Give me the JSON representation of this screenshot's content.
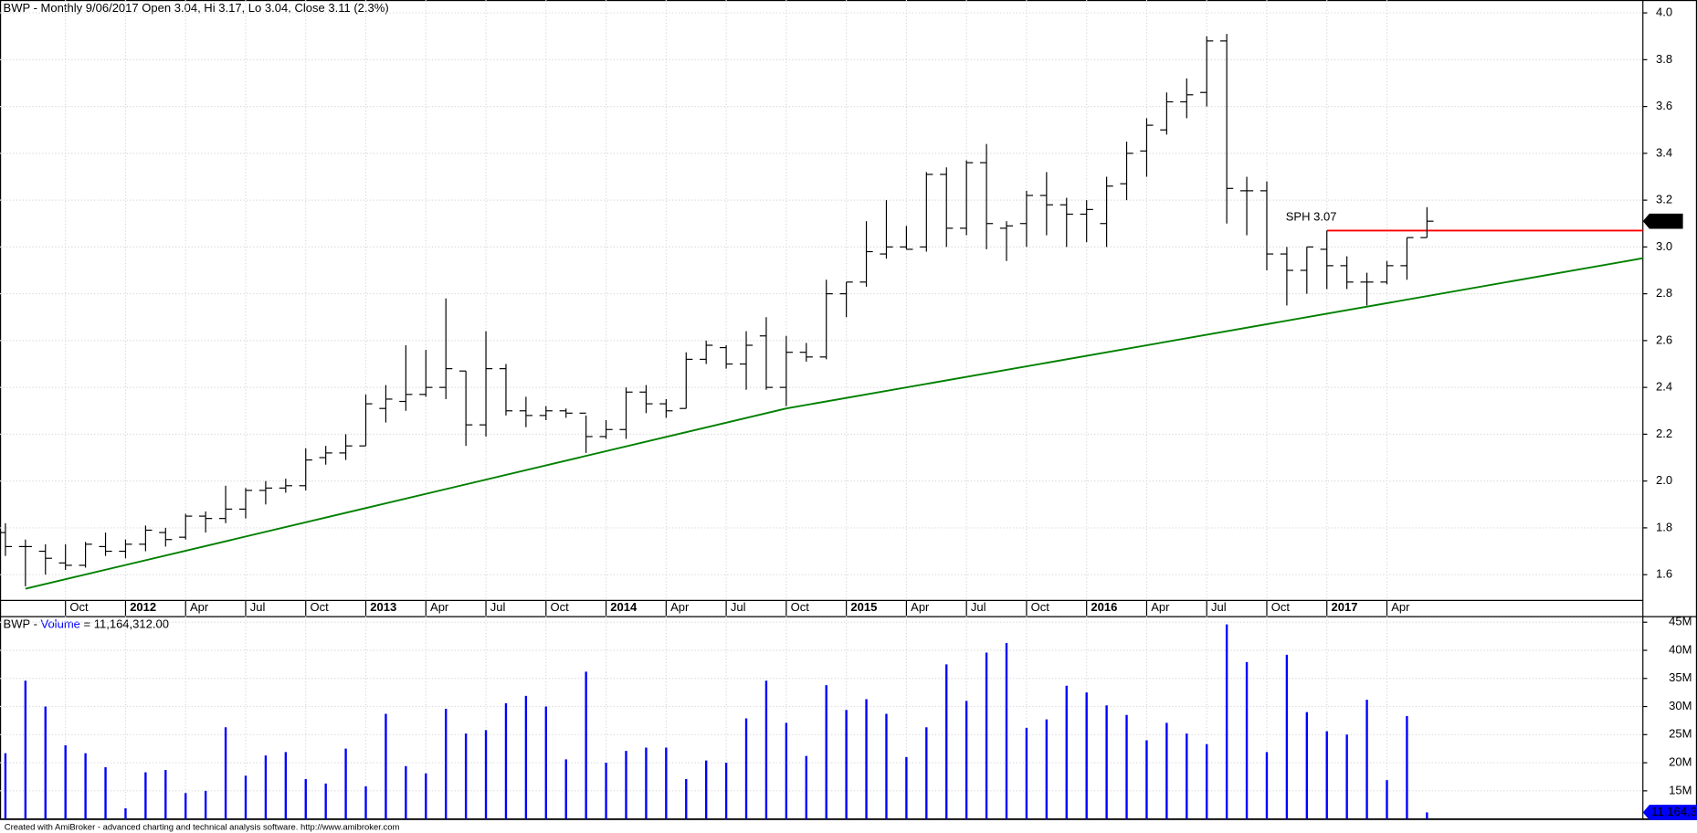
{
  "chart_data": [
    {
      "type": "ohlc",
      "title": "BWP - Monthly 9/06/2017 Open 3.04, Hi 3.17, Lo 3.04, Close 3.11 (2.3%)",
      "categories": [
        null,
        null,
        null,
        "Oct",
        null,
        null,
        "2012",
        null,
        null,
        "Apr",
        null,
        null,
        "Jul",
        null,
        null,
        "Oct",
        null,
        null,
        "2013",
        null,
        null,
        "Apr",
        null,
        null,
        "Jul",
        null,
        null,
        "Oct",
        null,
        null,
        "2014",
        null,
        null,
        "Apr",
        null,
        null,
        "Jul",
        null,
        null,
        "Oct",
        null,
        null,
        "2015",
        null,
        null,
        "Apr",
        null,
        null,
        "Jul",
        null,
        null,
        "Oct",
        null,
        null,
        "2016",
        null,
        null,
        "Apr",
        null,
        null,
        "Jul",
        null,
        null,
        "Oct",
        null,
        null,
        "2017",
        null,
        null,
        "Apr",
        null,
        null
      ],
      "open": [
        1.78,
        1.72,
        1.7,
        1.65,
        1.64,
        1.72,
        1.7,
        1.73,
        1.78,
        1.76,
        1.85,
        1.84,
        1.88,
        1.96,
        1.97,
        1.98,
        2.1,
        2.12,
        2.15,
        2.31,
        2.34,
        2.37,
        2.4,
        2.47,
        2.24,
        2.48,
        2.3,
        2.28,
        2.3,
        2.29,
        2.19,
        2.22,
        2.38,
        2.33,
        2.31,
        2.52,
        2.57,
        2.5,
        2.62,
        2.4,
        2.55,
        2.53,
        2.8,
        2.85,
        2.97,
        3.0,
        3.0,
        3.31,
        3.08,
        3.36,
        3.08,
        3.1,
        3.22,
        3.18,
        3.14,
        3.1,
        3.27,
        3.41,
        3.5,
        3.62,
        3.66,
        3.88,
        3.24,
        3.24,
        2.97,
        2.9,
        2.99,
        2.92,
        2.85,
        2.85,
        2.92,
        3.04
      ],
      "high": [
        1.82,
        1.75,
        1.73,
        1.73,
        1.74,
        1.78,
        1.75,
        1.81,
        1.8,
        1.86,
        1.87,
        1.98,
        1.97,
        2.0,
        2.01,
        2.14,
        2.15,
        2.2,
        2.37,
        2.41,
        2.58,
        2.56,
        2.78,
        2.47,
        2.64,
        2.5,
        2.36,
        2.32,
        2.31,
        2.28,
        2.26,
        2.4,
        2.41,
        2.35,
        2.55,
        2.6,
        2.58,
        2.64,
        2.7,
        2.62,
        2.59,
        2.86,
        2.85,
        3.11,
        3.2,
        3.09,
        3.32,
        3.34,
        3.37,
        3.44,
        3.11,
        3.24,
        3.32,
        3.21,
        3.2,
        3.3,
        3.45,
        3.55,
        3.66,
        3.72,
        3.9,
        3.91,
        3.3,
        3.28,
        3.0,
        3.0,
        3.07,
        2.96,
        2.89,
        2.94,
        3.04,
        3.17
      ],
      "low": [
        1.68,
        1.55,
        1.6,
        1.62,
        1.63,
        1.68,
        1.67,
        1.7,
        1.72,
        1.75,
        1.78,
        1.82,
        1.84,
        1.9,
        1.95,
        1.96,
        2.07,
        2.09,
        2.15,
        2.25,
        2.3,
        2.36,
        2.35,
        2.15,
        2.19,
        2.28,
        2.23,
        2.26,
        2.27,
        2.12,
        2.18,
        2.18,
        2.29,
        2.27,
        2.31,
        2.5,
        2.48,
        2.39,
        2.39,
        2.32,
        2.51,
        2.52,
        2.7,
        2.83,
        2.95,
        2.99,
        2.98,
        3.0,
        3.05,
        2.99,
        2.94,
        3.0,
        3.05,
        3.0,
        3.02,
        3.0,
        3.2,
        3.3,
        3.48,
        3.55,
        3.6,
        3.1,
        3.05,
        2.9,
        2.75,
        2.8,
        2.82,
        2.82,
        2.75,
        2.84,
        2.86,
        3.04
      ],
      "close": [
        1.72,
        1.72,
        1.67,
        1.64,
        1.73,
        1.7,
        1.73,
        1.79,
        1.75,
        1.85,
        1.84,
        1.88,
        1.96,
        1.97,
        1.98,
        2.09,
        2.12,
        2.15,
        2.33,
        2.35,
        2.37,
        2.4,
        2.48,
        2.24,
        2.48,
        2.3,
        2.28,
        2.3,
        2.29,
        2.19,
        2.22,
        2.38,
        2.33,
        2.3,
        2.52,
        2.58,
        2.5,
        2.58,
        2.4,
        2.55,
        2.53,
        2.8,
        2.85,
        2.98,
        3.0,
        2.99,
        3.31,
        3.08,
        3.36,
        3.1,
        3.09,
        3.22,
        3.18,
        3.14,
        3.16,
        3.26,
        3.4,
        3.52,
        3.62,
        3.65,
        3.88,
        3.25,
        3.24,
        2.97,
        2.9,
        3.0,
        2.92,
        2.85,
        2.85,
        2.92,
        3.04,
        3.11
      ],
      "color": "#000000",
      "ylim": [
        1.49,
        4.055
      ],
      "yticks": [
        1.6,
        1.8,
        {
          "value": 2,
          "label": "2.0"
        },
        2.2,
        2.4,
        2.6,
        2.8,
        {
          "value": 3,
          "label": "3.0"
        },
        3.2,
        3.4,
        3.6,
        3.8,
        {
          "value": 4,
          "label": "4.0"
        }
      ],
      "grid": true,
      "trendlines": [
        {
          "color": "#008000",
          "points": [
            [
              1,
              1.54
            ],
            [
              39,
              2.31
            ]
          ],
          "extend": false
        },
        {
          "color": "#008000",
          "points": [
            [
              39,
              2.31
            ],
            [
              68,
              2.745
            ]
          ],
          "extend": true
        }
      ],
      "level": {
        "text": "SPH 3.07",
        "value": 3.07,
        "start": 66,
        "color": "#ff0000",
        "text_color": "#0000ff"
      }
    },
    {
      "type": "volume",
      "title_parts": [
        "BWP -",
        "Volume",
        "= 11,164,312.00"
      ],
      "values": [
        21.7,
        34.6,
        30.0,
        23.1,
        21.7,
        19.2,
        11.9,
        18.3,
        18.7,
        14.6,
        15.0,
        26.3,
        17.7,
        21.3,
        21.9,
        17.1,
        16.3,
        22.5,
        15.8,
        28.7,
        19.4,
        18.1,
        29.6,
        25.2,
        25.8,
        30.6,
        31.9,
        30.0,
        20.6,
        36.2,
        20.0,
        22.1,
        22.7,
        22.7,
        17.1,
        20.4,
        20.0,
        27.9,
        34.6,
        27.1,
        21.2,
        33.8,
        29.4,
        31.3,
        28.7,
        21.0,
        26.3,
        37.5,
        31.0,
        39.6,
        41.3,
        26.2,
        27.7,
        33.7,
        32.5,
        30.2,
        28.5,
        24.0,
        27.1,
        25.2,
        23.3,
        44.6,
        37.9,
        21.9,
        39.2,
        29.0,
        25.6,
        25.0,
        31.2,
        16.9,
        28.3,
        11.164312
      ],
      "badge": "11,164,3",
      "color": "#0000ff",
      "ylim": [
        10,
        45.8
      ],
      "yticks": [
        {
          "value": 15,
          "label": "15M"
        },
        {
          "value": 20,
          "label": "20M"
        },
        {
          "value": 25,
          "label": "25M"
        },
        {
          "value": 30,
          "label": "30M"
        },
        {
          "value": 35,
          "label": "35M"
        },
        {
          "value": 40,
          "label": "40M"
        },
        {
          "value": 45,
          "label": "45M"
        }
      ],
      "grid": true
    }
  ],
  "footer": "Created with AmiBroker - advanced charting and technical analysis software. http://www.amibroker.com"
}
